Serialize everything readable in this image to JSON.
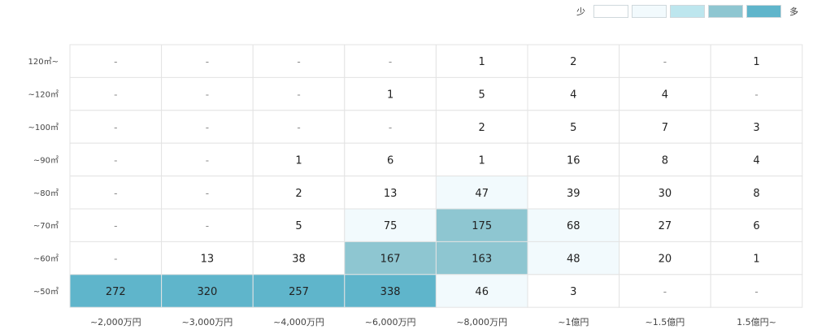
{
  "legend": {
    "low_label": "少",
    "high_label": "多",
    "swatches": [
      "#ffffff",
      "#f2fafd",
      "#bde6ee",
      "#8ec6d1",
      "#5fb5cb"
    ]
  },
  "chart_data": {
    "type": "heatmap",
    "x_categories": [
      "~2,000万円",
      "~3,000万円",
      "~4,000万円",
      "~6,000万円",
      "~8,000万円",
      "~1億円",
      "~1.5億円",
      "1.5億円~"
    ],
    "y_categories": [
      "120㎡~",
      "~120㎡",
      "~100㎡",
      "~90㎡",
      "~80㎡",
      "~70㎡",
      "~60㎡",
      "~50㎡"
    ],
    "values": [
      [
        null,
        null,
        null,
        null,
        1,
        2,
        null,
        1
      ],
      [
        null,
        null,
        null,
        1,
        5,
        4,
        4,
        null
      ],
      [
        null,
        null,
        null,
        null,
        2,
        5,
        7,
        3
      ],
      [
        null,
        null,
        1,
        6,
        1,
        16,
        8,
        4
      ],
      [
        null,
        null,
        2,
        13,
        47,
        39,
        30,
        8
      ],
      [
        null,
        null,
        5,
        75,
        175,
        68,
        27,
        6
      ],
      [
        null,
        13,
        38,
        167,
        163,
        48,
        20,
        1
      ],
      [
        272,
        320,
        257,
        338,
        46,
        3,
        null,
        null
      ]
    ],
    "empty_label": "-",
    "color_levels": [
      {
        "min": 0,
        "color": "#ffffff",
        "text": "#222222"
      },
      {
        "min": 40,
        "color": "#f2fafd",
        "text": "#222222"
      },
      {
        "min": 150,
        "color": "#8ec6d1",
        "text": "#222222"
      },
      {
        "min": 250,
        "color": "#5fb5cb",
        "text": "#222222"
      }
    ]
  }
}
